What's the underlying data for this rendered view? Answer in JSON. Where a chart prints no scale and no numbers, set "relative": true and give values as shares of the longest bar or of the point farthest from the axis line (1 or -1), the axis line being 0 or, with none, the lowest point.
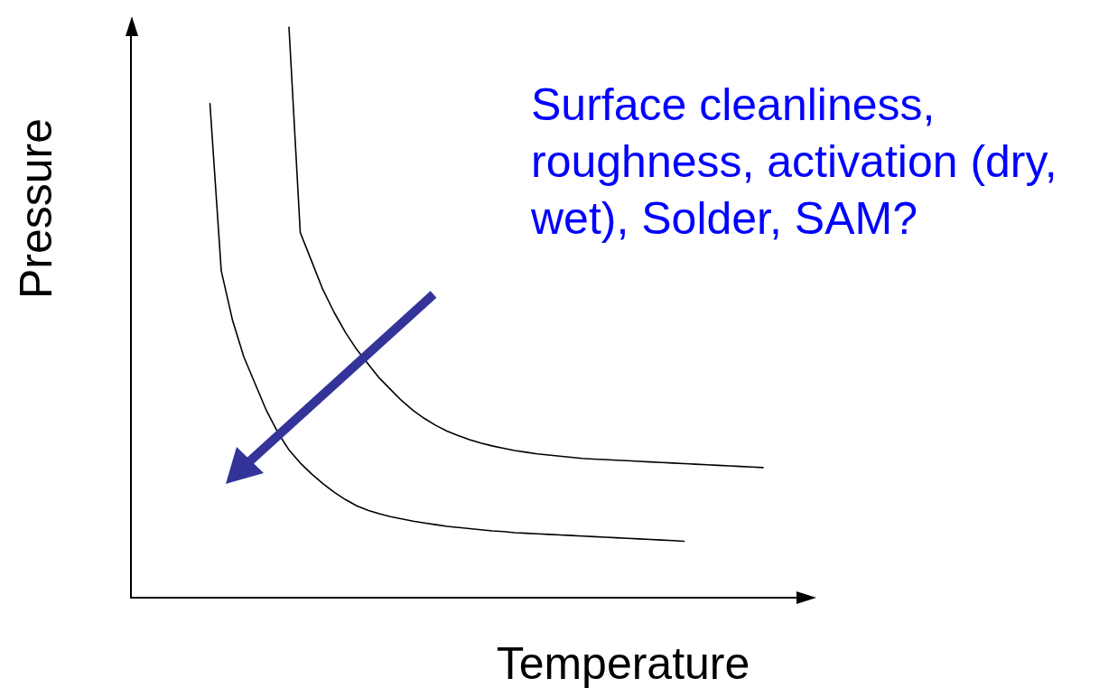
{
  "chart_data": {
    "type": "line",
    "relative": true,
    "xlabel": "Temperature",
    "ylabel": "Pressure",
    "annotations": [
      "Surface cleanliness, roughness, activation (dry, wet), Solder, SAM?"
    ],
    "categories": [
      null,
      null,
      null,
      null,
      null,
      null,
      null,
      null,
      null,
      null,
      null,
      null,
      null,
      null,
      null,
      null,
      null,
      null,
      null,
      null,
      null,
      null,
      null,
      null,
      null,
      null,
      null,
      null,
      null,
      null,
      null,
      null,
      null,
      null,
      null,
      null,
      null,
      null,
      null,
      null,
      null,
      null,
      null,
      null,
      null,
      null,
      null,
      null,
      null,
      null,
      null,
      null,
      null,
      null,
      null,
      null,
      null,
      null,
      null,
      null,
      null
    ],
    "series": [
      {
        "color": "#000000",
        "values": [
          null,
          null,
          null,
          null,
          null,
          null,
          null,
          0.866,
          0.573,
          0.486,
          0.422,
          0.375,
          0.328,
          0.29,
          0.259,
          0.236,
          0.217,
          0.2,
          0.185,
          0.172,
          0.161,
          0.153,
          0.147,
          0.142,
          0.138,
          0.134,
          0.131,
          0.128,
          0.125,
          0.123,
          0.121,
          0.119,
          0.117,
          0.116,
          0.114,
          0.113,
          0.112,
          0.111,
          0.11,
          0.109,
          0.108,
          0.107,
          0.106,
          0.105,
          0.104,
          0.103,
          0.102,
          0.101,
          0.1,
          0.099,
          null,
          null,
          null,
          null,
          null,
          null,
          null,
          null,
          null,
          null,
          null
        ]
      },
      {
        "color": "#000000",
        "values": [
          null,
          null,
          null,
          null,
          null,
          null,
          null,
          null,
          null,
          null,
          null,
          null,
          null,
          null,
          1.0,
          0.64,
          0.59,
          0.54,
          0.5,
          0.465,
          0.435,
          0.41,
          0.385,
          0.365,
          0.345,
          0.328,
          0.314,
          0.302,
          0.292,
          0.284,
          0.277,
          0.271,
          0.266,
          0.262,
          0.258,
          0.255,
          0.252,
          0.25,
          0.248,
          0.246,
          0.244,
          0.243,
          0.242,
          0.241,
          0.24,
          0.239,
          0.238,
          0.237,
          0.236,
          0.235,
          0.234,
          0.233,
          0.232,
          0.231,
          0.23,
          0.229,
          0.228,
          null,
          null,
          null,
          null
        ]
      }
    ],
    "marker": "none",
    "line_style": "solid",
    "grid": false,
    "tick_labels": false
  }
}
